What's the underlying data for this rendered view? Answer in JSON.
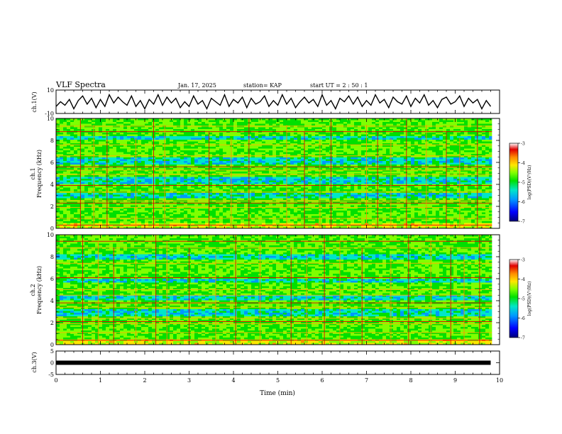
{
  "header": {
    "title": "VLF Spectra",
    "date": "Jan. 17, 2025",
    "station": "station= KAP",
    "start": "start  UT =  2 : 50 : 1"
  },
  "chart_data": [
    {
      "id": "ch1-waveform",
      "type": "line",
      "ylabel": "ch.1(V)",
      "ylim": [
        -10,
        10
      ],
      "y_ticks": [
        10,
        -10
      ],
      "xlim": [
        0,
        10
      ],
      "series": [
        {
          "x": [
            0,
            0.1,
            0.2,
            0.3,
            0.4,
            0.5,
            0.6,
            0.7,
            0.8,
            0.9,
            1.0,
            1.1,
            1.2,
            1.3,
            1.4,
            1.5,
            1.6,
            1.7,
            1.8,
            1.9,
            2.0,
            2.1,
            2.2,
            2.3,
            2.4,
            2.5,
            2.6,
            2.7,
            2.8,
            2.9,
            3.0,
            3.1,
            3.2,
            3.3,
            3.4,
            3.5,
            3.6,
            3.7,
            3.8,
            3.9,
            4.0,
            4.1,
            4.2,
            4.3,
            4.4,
            4.5,
            4.6,
            4.7,
            4.8,
            4.9,
            5.0,
            5.1,
            5.2,
            5.3,
            5.4,
            5.5,
            5.6,
            5.7,
            5.8,
            5.9,
            6.0,
            6.1,
            6.2,
            6.3,
            6.4,
            6.5,
            6.6,
            6.7,
            6.8,
            6.9,
            7.0,
            7.1,
            7.2,
            7.3,
            7.4,
            7.5,
            7.6,
            7.7,
            7.8,
            7.9,
            8.0,
            8.1,
            8.2,
            8.3,
            8.4,
            8.5,
            8.6,
            8.7,
            8.8,
            8.9,
            9.0,
            9.1,
            9.2,
            9.3,
            9.4,
            9.5,
            9.6,
            9.7,
            9.8
          ],
          "y": [
            -4,
            0,
            -3,
            2,
            -6,
            1,
            5,
            -2,
            3,
            -5,
            2,
            -4,
            6,
            -1,
            4,
            0,
            -3,
            5,
            -4,
            1,
            -6,
            2,
            -2,
            6,
            -3,
            4,
            -1,
            3,
            -5,
            0,
            -4,
            5,
            -2,
            1,
            -6,
            3,
            0,
            -3,
            6,
            -4,
            2,
            -1,
            4,
            -5,
            3,
            -2,
            0,
            5,
            -4,
            1,
            -3,
            6,
            -2,
            3,
            -5,
            0,
            4,
            -1,
            2,
            -4,
            6,
            -3,
            1,
            -6,
            3,
            0,
            5,
            -2,
            4,
            -4,
            1,
            -3,
            6,
            -1,
            2,
            -5,
            4,
            0,
            -2,
            5,
            -4,
            3,
            -1,
            6,
            -3,
            1,
            -5,
            2,
            4,
            -2,
            0,
            5,
            -4,
            3,
            -1,
            2,
            -6,
            1,
            -4
          ]
        }
      ]
    },
    {
      "id": "ch1-spectrogram",
      "type": "heatmap",
      "ylabel": "ch.1\nFrequency (kHz)",
      "ylim": [
        0,
        10
      ],
      "y_ticks": [
        0,
        2,
        4,
        6,
        8,
        10
      ],
      "xlim": [
        0,
        10
      ],
      "colorbar": {
        "label": "log(PSD)(V²/Hz)",
        "range": [
          -7,
          -3
        ],
        "ticks": [
          -3,
          -4,
          -5,
          -6,
          -7
        ]
      },
      "horizontal_lines_khz": [
        0.3,
        0.9,
        1.9,
        2.3,
        2.5,
        3.3,
        3.9,
        4.9,
        5.3,
        5.6,
        6.6,
        7.6,
        8.8,
        9.3
      ],
      "low_power_bands_khz": [
        [
          2.7,
          3.3
        ],
        [
          4.1,
          4.6
        ],
        [
          5.8,
          6.4
        ],
        [
          8.0,
          8.4
        ]
      ],
      "vertical_bursts_min": [
        0.55,
        0.85,
        1.15,
        1.8,
        2.2,
        2.45,
        3.45,
        3.95,
        4.35,
        5.2,
        5.6,
        5.95,
        6.2,
        7.0,
        7.25,
        7.55,
        7.9,
        8.35,
        8.8,
        9.1,
        9.5
      ]
    },
    {
      "id": "ch2-spectrogram",
      "type": "heatmap",
      "ylabel": "ch.2\nFrequency (kHz)",
      "ylim": [
        0,
        10
      ],
      "y_ticks": [
        0,
        2,
        4,
        6,
        8,
        10
      ],
      "xlim": [
        0,
        10
      ],
      "colorbar": {
        "label": "log(PSD)(V²/Hz)",
        "range": [
          -7,
          -3
        ],
        "ticks": [
          -3,
          -4,
          -5,
          -6,
          -7
        ]
      },
      "horizontal_lines_khz": [
        0.4,
        1.1,
        1.9,
        2.1,
        2.4,
        3.4,
        3.8,
        4.5,
        5.0,
        6.1,
        7.4,
        8.8,
        9.4
      ],
      "low_power_bands_khz": [
        [
          2.6,
          3.2
        ],
        [
          4.0,
          4.5
        ],
        [
          5.6,
          6.0
        ],
        [
          7.8,
          8.3
        ]
      ],
      "vertical_bursts_min": [
        0.6,
        0.95,
        1.3,
        1.8,
        2.25,
        2.5,
        3.0,
        3.6,
        4.05,
        4.6,
        5.3,
        5.65,
        6.05,
        6.4,
        6.9,
        7.55,
        7.95,
        8.45,
        8.9,
        9.2,
        9.55
      ]
    },
    {
      "id": "ch3-waveform",
      "type": "line",
      "ylabel": "ch.3(V)",
      "ylim": [
        -5,
        5
      ],
      "y_ticks": [
        5,
        0,
        -5
      ],
      "xlim": [
        0,
        10
      ],
      "xlabel": "Time (min)",
      "x_ticks": [
        0,
        1,
        2,
        3,
        4,
        5,
        6,
        7,
        8,
        9,
        10
      ],
      "series": [
        {
          "x": [
            0,
            9.8
          ],
          "y": [
            0,
            0
          ]
        }
      ]
    }
  ],
  "colors": {
    "colormap": [
      "#00007a",
      "#0000ff",
      "#0099ff",
      "#00e6c8",
      "#00e000",
      "#7fff00",
      "#ffe600",
      "#ff8c00",
      "#e00000",
      "#ffffff"
    ],
    "axes": "#000000",
    "trace": "#000000"
  }
}
